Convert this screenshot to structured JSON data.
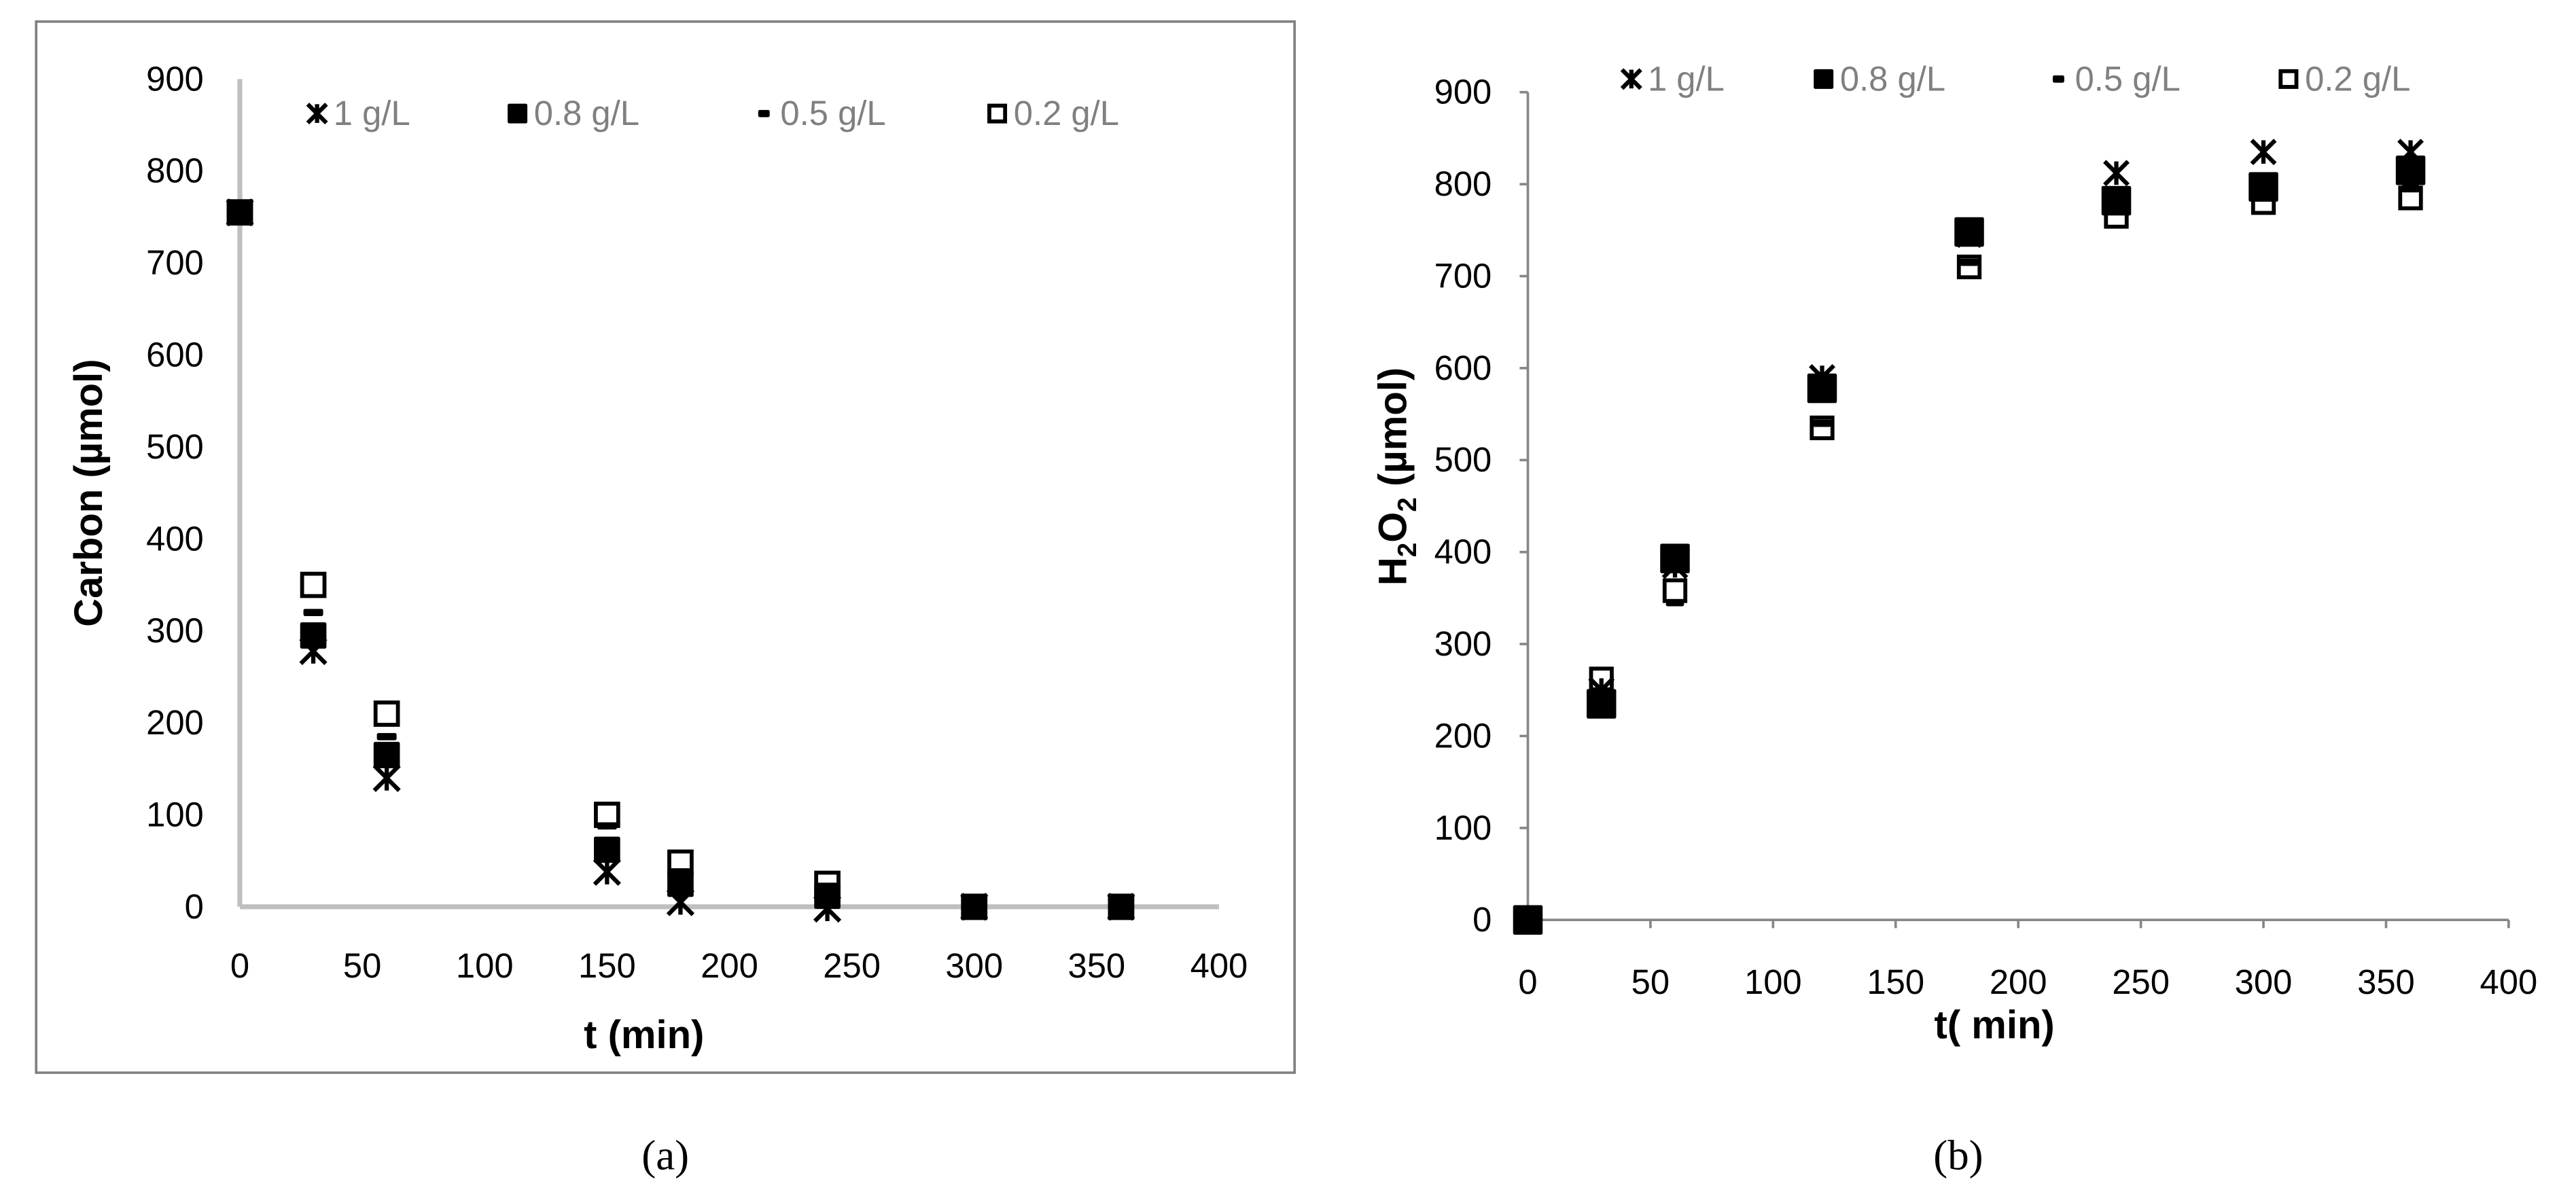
{
  "colors": {
    "marker": "#000000",
    "axis_a": "#bfbfbf",
    "axis_b": "#868686",
    "legend_text": "#808080",
    "frame": "#808080"
  },
  "chart_data": [
    {
      "type": "scatter",
      "panel": "a",
      "caption": "(a)",
      "title": "",
      "xlabel": "t (min)",
      "ylabel": "Carbon (µmol)",
      "xlim": [
        0,
        400
      ],
      "ylim": [
        0,
        900
      ],
      "xticks": [
        0,
        50,
        100,
        150,
        200,
        250,
        300,
        350,
        400
      ],
      "yticks": [
        0,
        100,
        200,
        300,
        400,
        500,
        600,
        700,
        800,
        900
      ],
      "grid": false,
      "legend_position": "top",
      "x": [
        0,
        30,
        60,
        150,
        180,
        240,
        300,
        360
      ],
      "series": [
        {
          "name": "1 g/L",
          "marker": "asterisk",
          "values": [
            755,
            278,
            140,
            38,
            5,
            -2,
            0,
            0
          ]
        },
        {
          "name": "0.8 g/L",
          "marker": "filled-square",
          "values": [
            755,
            295,
            165,
            62,
            25,
            12,
            0,
            0
          ]
        },
        {
          "name": "0.5 g/L",
          "marker": "dash",
          "values": [
            755,
            320,
            185,
            88,
            38,
            20,
            0,
            0
          ]
        },
        {
          "name": "0.2 g/L",
          "marker": "open-square",
          "values": [
            755,
            350,
            210,
            100,
            48,
            25,
            0,
            0
          ]
        }
      ]
    },
    {
      "type": "scatter",
      "panel": "b",
      "caption": "(b)",
      "title": "",
      "xlabel": "t( min)",
      "ylabel": "H2O2 (µmol)",
      "xlim": [
        0,
        400
      ],
      "ylim": [
        0,
        900
      ],
      "xticks": [
        0,
        50,
        100,
        150,
        200,
        250,
        300,
        350,
        400
      ],
      "yticks": [
        0,
        100,
        200,
        300,
        400,
        500,
        600,
        700,
        800,
        900
      ],
      "grid": false,
      "legend_position": "top",
      "x": [
        0,
        30,
        60,
        120,
        180,
        240,
        300,
        360
      ],
      "series": [
        {
          "name": "1 g/L",
          "marker": "asterisk",
          "values": [
            0,
            250,
            385,
            590,
            745,
            812,
            835,
            835
          ]
        },
        {
          "name": "0.8 g/L",
          "marker": "filled-square",
          "values": [
            0,
            235,
            393,
            578,
            748,
            782,
            797,
            815
          ]
        },
        {
          "name": "0.5 g/L",
          "marker": "dash",
          "values": [
            0,
            240,
            345,
            540,
            715,
            770,
            785,
            795
          ]
        },
        {
          "name": "0.2 g/L",
          "marker": "open-square",
          "values": [
            0,
            262,
            358,
            535,
            710,
            765,
            780,
            785
          ]
        }
      ]
    }
  ],
  "panel_a": {
    "ylabel": "Carbon (µmol)",
    "xlabel": "t (min)",
    "caption": "(a)",
    "legend": [
      "1 g/L",
      "0.8 g/L",
      "0.5 g/L",
      "0.2 g/L"
    ],
    "xticks": [
      "0",
      "50",
      "100",
      "150",
      "200",
      "250",
      "300",
      "350",
      "400"
    ],
    "yticks": [
      "0",
      "100",
      "200",
      "300",
      "400",
      "500",
      "600",
      "700",
      "800",
      "900"
    ]
  },
  "panel_b": {
    "ylabel_main": "H",
    "ylabel_sub1": "2",
    "ylabel_mid": "O",
    "ylabel_sub2": "2",
    "ylabel_rest": " (µmol)",
    "xlabel": "t( min)",
    "caption": "(b)",
    "legend": [
      "1 g/L",
      "0.8 g/L",
      "0.5 g/L",
      "0.2 g/L"
    ],
    "xticks": [
      "0",
      "50",
      "100",
      "150",
      "200",
      "250",
      "300",
      "350",
      "400"
    ],
    "yticks": [
      "0",
      "100",
      "200",
      "300",
      "400",
      "500",
      "600",
      "700",
      "800",
      "900"
    ]
  }
}
